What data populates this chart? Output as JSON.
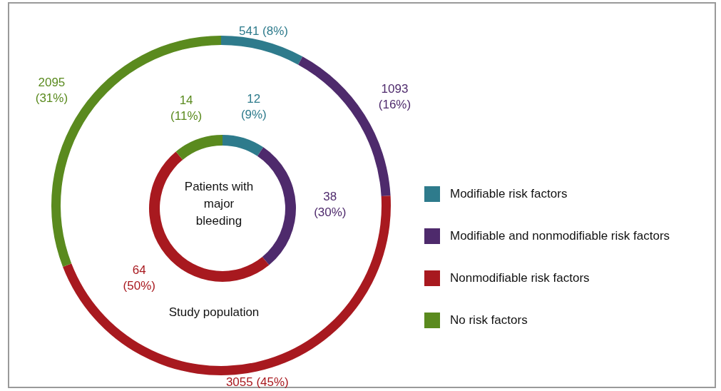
{
  "chart_data": [
    {
      "type": "donut",
      "title": "Study population",
      "categories": [
        "Modifiable risk factors",
        "Modifiable and nonmodifiable risk factors",
        "Nonmodifiable risk factors",
        "No risk factors"
      ],
      "values": [
        541,
        1093,
        3055,
        2095
      ],
      "colors": [
        "#2e7b8c",
        "#4e2a6c",
        "#a8191f",
        "#5a8a1e"
      ],
      "value_labels": [
        "541 (8%)",
        "1093 (16%)",
        "3055 (45%)",
        "2095 (31%)"
      ],
      "legend": "right"
    },
    {
      "type": "donut",
      "title": "Patients with major bleeding",
      "values": [
        12,
        38,
        64,
        14
      ],
      "colors": [
        "#2e7b8c",
        "#4e2a6c",
        "#a8191f",
        "#5a8a1e"
      ],
      "value_labels": [
        "12 (9%)",
        "38 (30%)",
        "64 (50%)",
        "14 (11%)"
      ]
    }
  ]
}
